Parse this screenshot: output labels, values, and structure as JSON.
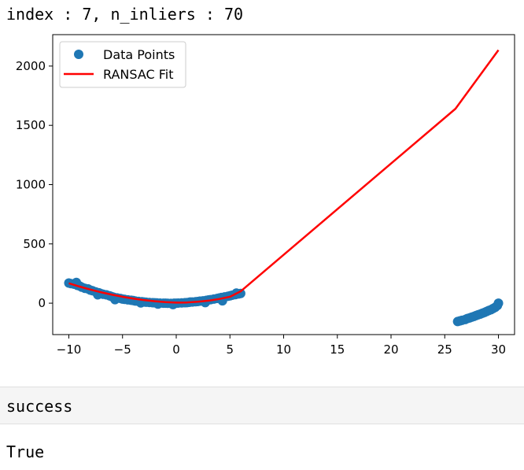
{
  "output": {
    "stdout_line": "index : 7, n_inliers : 70",
    "section_label": "success",
    "result_value": "True"
  },
  "chart_data": {
    "type": "scatter",
    "xlim": [
      -11.5,
      31.5
    ],
    "ylim": [
      -265,
      2265
    ],
    "xticks": [
      -10,
      -5,
      0,
      5,
      10,
      15,
      20,
      25,
      30
    ],
    "yticks": [
      0,
      500,
      1000,
      1500,
      2000
    ],
    "grid": false,
    "legend_position": "top-left",
    "colors": {
      "points": "#1f77b4",
      "fit": "#ff0000"
    },
    "series": [
      {
        "name": "Data Points",
        "kind": "scatter",
        "points": [
          [
            -10.0,
            170
          ],
          [
            -9.8,
            165
          ],
          [
            -9.5,
            160
          ],
          [
            -9.2,
            150
          ],
          [
            -9.0,
            145
          ],
          [
            -8.8,
            135
          ],
          [
            -8.5,
            125
          ],
          [
            -8.2,
            120
          ],
          [
            -8.0,
            110
          ],
          [
            -7.8,
            105
          ],
          [
            -7.5,
            95
          ],
          [
            -7.2,
            88
          ],
          [
            -7.0,
            80
          ],
          [
            -6.8,
            75
          ],
          [
            -6.5,
            70
          ],
          [
            -6.2,
            62
          ],
          [
            -6.0,
            55
          ],
          [
            -5.8,
            50
          ],
          [
            -5.5,
            45
          ],
          [
            -5.2,
            40
          ],
          [
            -5.0,
            35
          ],
          [
            -4.8,
            32
          ],
          [
            -4.5,
            28
          ],
          [
            -4.2,
            25
          ],
          [
            -4.0,
            22
          ],
          [
            -3.8,
            18
          ],
          [
            -3.5,
            15
          ],
          [
            -3.2,
            12
          ],
          [
            -3.0,
            10
          ],
          [
            -2.8,
            8
          ],
          [
            -2.5,
            6
          ],
          [
            -2.2,
            4
          ],
          [
            -2.0,
            3
          ],
          [
            -1.8,
            2
          ],
          [
            -1.5,
            1
          ],
          [
            -1.2,
            0
          ],
          [
            -1.0,
            0
          ],
          [
            -0.8,
            -1
          ],
          [
            -0.5,
            -2
          ],
          [
            -0.2,
            0
          ],
          [
            0.0,
            0
          ],
          [
            0.2,
            1
          ],
          [
            0.5,
            2
          ],
          [
            0.8,
            4
          ],
          [
            1.0,
            5
          ],
          [
            1.2,
            7
          ],
          [
            1.5,
            10
          ],
          [
            1.8,
            12
          ],
          [
            2.0,
            14
          ],
          [
            2.2,
            17
          ],
          [
            2.5,
            20
          ],
          [
            2.8,
            24
          ],
          [
            3.0,
            27
          ],
          [
            3.2,
            30
          ],
          [
            3.5,
            35
          ],
          [
            3.8,
            40
          ],
          [
            4.0,
            44
          ],
          [
            4.2,
            48
          ],
          [
            4.5,
            53
          ],
          [
            4.8,
            58
          ],
          [
            5.0,
            62
          ],
          [
            5.2,
            67
          ],
          [
            5.5,
            72
          ],
          [
            5.8,
            78
          ],
          [
            6.0,
            82
          ],
          [
            -9.3,
            175
          ],
          [
            -7.3,
            70
          ],
          [
            -5.7,
            30
          ],
          [
            -3.3,
            2
          ],
          [
            -1.7,
            -8
          ],
          [
            -0.3,
            -12
          ],
          [
            1.3,
            10
          ],
          [
            2.7,
            5
          ],
          [
            4.3,
            20
          ],
          [
            5.6,
            85
          ],
          [
            26.2,
            -155
          ],
          [
            26.4,
            -150
          ],
          [
            26.6,
            -145
          ],
          [
            26.9,
            -138
          ],
          [
            27.1,
            -130
          ],
          [
            27.3,
            -125
          ],
          [
            27.5,
            -118
          ],
          [
            27.7,
            -112
          ],
          [
            27.9,
            -105
          ],
          [
            28.1,
            -98
          ],
          [
            28.3,
            -92
          ],
          [
            28.5,
            -85
          ],
          [
            28.7,
            -78
          ],
          [
            28.9,
            -70
          ],
          [
            29.1,
            -62
          ],
          [
            29.3,
            -55
          ],
          [
            29.5,
            -45
          ],
          [
            29.7,
            -35
          ],
          [
            29.9,
            -20
          ],
          [
            30.0,
            0
          ]
        ]
      },
      {
        "name": "RANSAC Fit",
        "kind": "line",
        "x": [
          -10,
          -9,
          -8,
          -7,
          -6,
          -5,
          -4,
          -3,
          -2,
          -1,
          0,
          1,
          2,
          3,
          4,
          5,
          6,
          26,
          30
        ],
        "y": [
          168,
          140,
          115,
          92,
          72,
          54,
          39,
          26,
          16,
          9,
          5,
          6,
          12,
          21,
          35,
          54,
          100,
          1640,
          2135
        ]
      }
    ]
  }
}
